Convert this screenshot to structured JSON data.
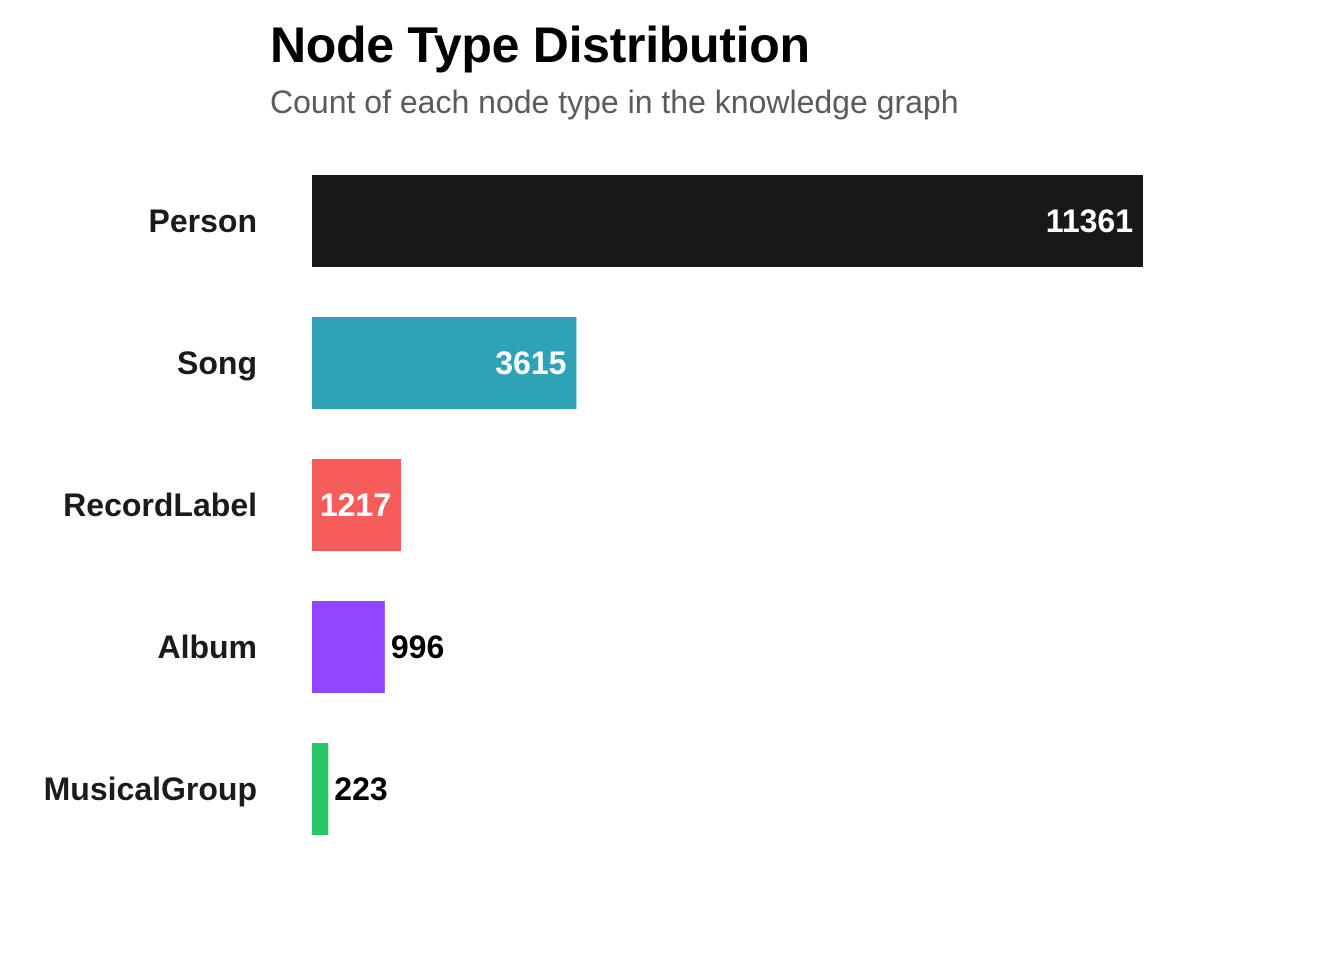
{
  "chart_data": {
    "type": "bar",
    "orientation": "horizontal",
    "title": "Node Type Distribution",
    "subtitle": "Count of each node type in the knowledge graph",
    "categories": [
      "Person",
      "Song",
      "RecordLabel",
      "Album",
      "MusicalGroup"
    ],
    "values": [
      11361,
      3615,
      1217,
      996,
      223
    ],
    "colors": [
      "#18181b",
      "#2ea3b8",
      "#f65d5a",
      "#9146ff",
      "#2bc568"
    ],
    "xlim": [
      0,
      11361
    ],
    "grid": false,
    "legend": "none",
    "data_labels": true
  }
}
